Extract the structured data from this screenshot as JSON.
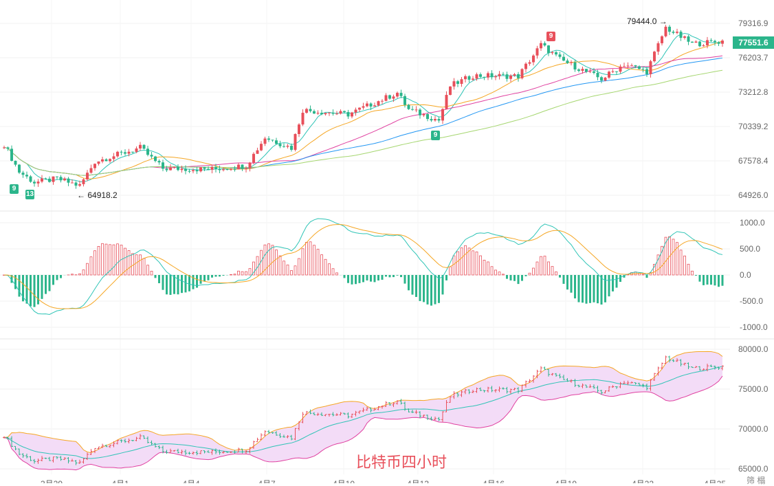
{
  "chart_data": {
    "type": "candlestick",
    "title": "比特币四小时",
    "current_price": "77551.6",
    "annotations": {
      "high": "79444.0",
      "low": "64918.2"
    },
    "markers": [
      {
        "text": "9",
        "color": "#e8505b"
      },
      {
        "text": "9",
        "color": "#2bb58b"
      },
      {
        "text": "13",
        "color": "#2bb58b"
      },
      {
        "text": "9",
        "color": "#2bb58b"
      }
    ],
    "x_ticks": [
      "3月29",
      "4月1",
      "4月4",
      "4月7",
      "4月10",
      "4月13",
      "4月16",
      "4月19",
      "4月22",
      "4月25"
    ],
    "price_ticks": [
      "79316.9",
      "76203.7",
      "73212.8",
      "70339.2",
      "67578.4",
      "64926.0"
    ],
    "price_range": [
      64926.0,
      79316.9
    ],
    "macd_ticks": [
      "1000.0",
      "500.0",
      "0.0",
      "-500.0",
      "-1000.0"
    ],
    "boll_ticks": [
      "80000.0",
      "75000.0",
      "70000.0",
      "65000.0"
    ],
    "corner_text": "筛 榻",
    "close_keypoints": [
      [
        0,
        69180
      ],
      [
        4,
        66880
      ],
      [
        8,
        66000
      ],
      [
        14,
        66300
      ],
      [
        20,
        65720
      ],
      [
        24,
        67740
      ],
      [
        36,
        68900
      ],
      [
        42,
        67170
      ],
      [
        55,
        67100
      ],
      [
        64,
        67400
      ],
      [
        69,
        69760
      ],
      [
        76,
        68900
      ],
      [
        79,
        72060
      ],
      [
        91,
        71700
      ],
      [
        104,
        73500
      ],
      [
        107,
        72100
      ],
      [
        115,
        71200
      ],
      [
        118,
        74080
      ],
      [
        124,
        74940
      ],
      [
        136,
        74900
      ],
      [
        142,
        77530
      ],
      [
        147,
        76300
      ],
      [
        158,
        74650
      ],
      [
        164,
        75900
      ],
      [
        170,
        75300
      ],
      [
        175,
        78970
      ],
      [
        182,
        77600
      ],
      [
        190,
        77820
      ]
    ],
    "moving_averages": [
      {
        "period": 7,
        "color": "#2ec4b6"
      },
      {
        "period": 20,
        "color": "#f5a623"
      },
      {
        "period": 40,
        "color": "#e040a0"
      },
      {
        "period": 60,
        "color": "#2196f3"
      },
      {
        "period": 90,
        "color": "#a5d66f"
      }
    ],
    "colors": {
      "up": "#e8505b",
      "down": "#2bb58b",
      "boll_fill": "#f3dcf7",
      "boll_upper": "#f5a623",
      "boll_lower": "#e040a0",
      "boll_mid": "#2ec4b6"
    }
  }
}
